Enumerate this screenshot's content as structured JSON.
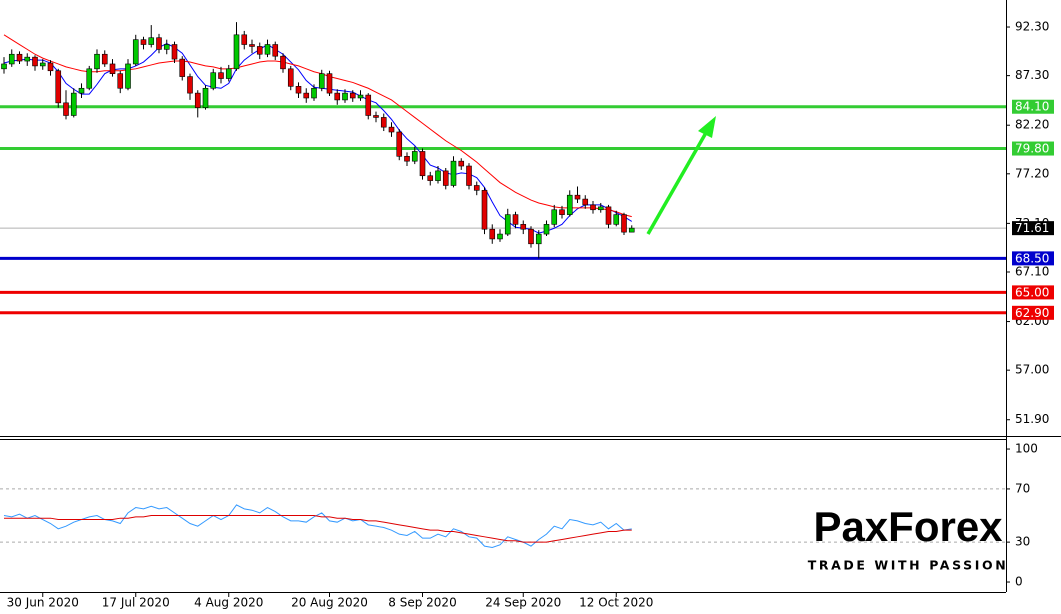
{
  "chart_data": {
    "type": "candlestick",
    "categories": [
      null,
      null,
      null,
      null,
      null,
      "30 Jun 2020",
      null,
      null,
      null,
      null,
      null,
      null,
      null,
      null,
      null,
      null,
      null,
      "17 Jul 2020",
      null,
      null,
      null,
      null,
      null,
      null,
      null,
      null,
      null,
      null,
      null,
      "4 Aug 2020",
      null,
      null,
      null,
      null,
      null,
      null,
      null,
      null,
      null,
      null,
      null,
      null,
      "20 Aug 2020",
      null,
      null,
      null,
      null,
      null,
      null,
      null,
      null,
      null,
      null,
      null,
      "8 Sep 2020",
      null,
      null,
      null,
      null,
      null,
      null,
      null,
      null,
      null,
      null,
      null,
      null,
      "24 Sep 2020",
      null,
      null,
      null,
      null,
      null,
      null,
      null,
      null,
      null,
      null,
      null,
      "12 Oct 2020",
      null,
      null
    ],
    "ohlc": [
      [
        88.0,
        89.2,
        87.5,
        88.5
      ],
      [
        88.5,
        90.0,
        88.2,
        89.5
      ],
      [
        89.5,
        89.8,
        88.5,
        88.8
      ],
      [
        88.8,
        89.6,
        88.3,
        89.2
      ],
      [
        89.2,
        89.4,
        87.8,
        88.3
      ],
      [
        88.3,
        89.0,
        87.9,
        88.6
      ],
      [
        88.6,
        88.9,
        87.3,
        87.8
      ],
      [
        87.8,
        88.0,
        84.0,
        84.5
      ],
      [
        84.5,
        85.8,
        82.8,
        83.2
      ],
      [
        83.2,
        86.0,
        83.0,
        85.5
      ],
      [
        85.5,
        86.5,
        85.0,
        86.0
      ],
      [
        86.0,
        88.3,
        85.8,
        88.0
      ],
      [
        88.0,
        90.0,
        87.6,
        89.5
      ],
      [
        89.5,
        89.9,
        88.2,
        88.5
      ],
      [
        88.5,
        89.0,
        87.2,
        87.5
      ],
      [
        87.5,
        87.8,
        85.5,
        86.0
      ],
      [
        86.0,
        89.0,
        85.8,
        88.5
      ],
      [
        88.5,
        91.5,
        88.3,
        91.0
      ],
      [
        91.0,
        91.3,
        90.0,
        90.5
      ],
      [
        90.5,
        92.5,
        90.2,
        91.2
      ],
      [
        91.2,
        91.6,
        89.6,
        90.0
      ],
      [
        90.0,
        91.0,
        89.5,
        90.5
      ],
      [
        90.5,
        90.8,
        88.6,
        89.0
      ],
      [
        89.0,
        89.3,
        86.8,
        87.2
      ],
      [
        87.2,
        87.5,
        84.8,
        85.5
      ],
      [
        85.5,
        85.8,
        83.0,
        84.0
      ],
      [
        84.0,
        86.3,
        83.8,
        86.0
      ],
      [
        86.0,
        88.0,
        85.8,
        87.6
      ],
      [
        87.6,
        88.2,
        86.5,
        87.0
      ],
      [
        87.0,
        88.4,
        86.7,
        88.0
      ],
      [
        88.0,
        92.8,
        87.8,
        91.5
      ],
      [
        91.5,
        91.9,
        90.0,
        90.5
      ],
      [
        90.5,
        91.0,
        89.6,
        90.3
      ],
      [
        90.3,
        90.7,
        89.0,
        89.5
      ],
      [
        89.5,
        91.0,
        89.2,
        90.5
      ],
      [
        90.5,
        90.8,
        88.9,
        89.3
      ],
      [
        89.3,
        89.6,
        87.6,
        88.0
      ],
      [
        88.0,
        88.3,
        85.8,
        86.2
      ],
      [
        86.2,
        86.6,
        85.0,
        85.5
      ],
      [
        85.5,
        86.0,
        84.5,
        85.0
      ],
      [
        85.0,
        86.4,
        84.7,
        86.0
      ],
      [
        86.0,
        87.9,
        85.7,
        87.5
      ],
      [
        87.5,
        87.8,
        85.2,
        85.5
      ],
      [
        85.5,
        85.9,
        84.3,
        84.8
      ],
      [
        84.8,
        85.9,
        84.5,
        85.5
      ],
      [
        85.5,
        85.8,
        84.6,
        85.0
      ],
      [
        85.0,
        85.8,
        84.7,
        85.3
      ],
      [
        85.3,
        85.5,
        82.8,
        83.2
      ],
      [
        83.2,
        83.6,
        82.5,
        83.0
      ],
      [
        83.0,
        83.4,
        81.6,
        82.0
      ],
      [
        82.0,
        82.5,
        81.0,
        81.5
      ],
      [
        81.5,
        81.8,
        78.6,
        79.0
      ],
      [
        79.0,
        79.4,
        78.0,
        78.5
      ],
      [
        78.5,
        80.0,
        78.2,
        79.5
      ],
      [
        79.5,
        79.8,
        76.6,
        77.0
      ],
      [
        77.0,
        77.4,
        76.0,
        76.5
      ],
      [
        76.5,
        78.0,
        76.2,
        77.5
      ],
      [
        77.5,
        77.8,
        75.6,
        76.0
      ],
      [
        76.0,
        79.0,
        75.8,
        78.5
      ],
      [
        78.5,
        78.8,
        77.6,
        78.0
      ],
      [
        78.0,
        78.3,
        75.6,
        76.0
      ],
      [
        76.0,
        76.4,
        75.0,
        75.5
      ],
      [
        75.5,
        75.8,
        71.0,
        71.5
      ],
      [
        71.5,
        72.0,
        70.0,
        70.5
      ],
      [
        70.5,
        71.5,
        70.2,
        71.0
      ],
      [
        71.0,
        73.6,
        70.8,
        73.0
      ],
      [
        73.0,
        73.3,
        71.6,
        72.0
      ],
      [
        72.0,
        72.4,
        71.0,
        71.5
      ],
      [
        71.5,
        71.8,
        69.6,
        70.0
      ],
      [
        70.0,
        71.4,
        68.5,
        71.0
      ],
      [
        71.0,
        72.4,
        70.8,
        72.0
      ],
      [
        72.0,
        74.0,
        71.7,
        73.5
      ],
      [
        73.5,
        73.9,
        72.6,
        73.0
      ],
      [
        73.0,
        75.5,
        72.8,
        75.0
      ],
      [
        75.0,
        75.9,
        74.2,
        74.6
      ],
      [
        74.6,
        75.0,
        73.6,
        74.0
      ],
      [
        74.0,
        74.4,
        73.1,
        73.5
      ],
      [
        73.5,
        74.2,
        73.2,
        73.8
      ],
      [
        73.8,
        74.0,
        71.6,
        72.0
      ],
      [
        72.0,
        73.4,
        71.8,
        73.0
      ],
      [
        73.0,
        73.2,
        70.9,
        71.2
      ],
      [
        71.2,
        71.9,
        71.2,
        71.61
      ]
    ],
    "up_color": "#00c800",
    "down_color": "#e00000",
    "series": [
      {
        "color": "#0000ff",
        "values": [
          88.6,
          88.8,
          88.9,
          89.0,
          88.9,
          88.9,
          88.6,
          87.7,
          86.5,
          85.9,
          85.4,
          85.4,
          86.4,
          87.5,
          87.9,
          88.0,
          88.0,
          88.3,
          88.7,
          89.4,
          90.2,
          90.6,
          90.2,
          89.6,
          88.4,
          87.2,
          86.3,
          86.1,
          86.0,
          86.5,
          88.0,
          88.9,
          89.5,
          90.0,
          90.5,
          90.0,
          89.5,
          88.7,
          87.9,
          86.8,
          86.1,
          86.0,
          85.9,
          85.8,
          85.7,
          85.6,
          85.2,
          84.8,
          84.5,
          83.7,
          82.8,
          81.7,
          80.8,
          80.1,
          79.1,
          78.1,
          77.8,
          77.3,
          77.1,
          77.3,
          77.2,
          76.8,
          75.8,
          74.3,
          72.9,
          72.3,
          71.7,
          71.6,
          71.5,
          71.1,
          71.3,
          71.6,
          72.0,
          72.9,
          73.6,
          74.0,
          74.0,
          74.0,
          73.6,
          73.2,
          72.8,
          72.3
        ]
      },
      {
        "color": "#ff0000",
        "values": [
          91.5,
          91.0,
          90.5,
          90.0,
          89.5,
          89.1,
          88.8,
          88.5,
          88.2,
          88.0,
          87.8,
          87.7,
          87.7,
          87.8,
          87.8,
          87.8,
          87.9,
          88.0,
          88.2,
          88.4,
          88.6,
          88.7,
          88.8,
          88.8,
          88.7,
          88.5,
          88.3,
          88.2,
          88.0,
          88.0,
          88.1,
          88.3,
          88.5,
          88.7,
          88.8,
          88.8,
          88.7,
          88.5,
          88.3,
          88.0,
          87.7,
          87.5,
          87.2,
          87.0,
          86.8,
          86.6,
          86.3,
          86.0,
          85.6,
          85.2,
          84.8,
          84.2,
          83.6,
          83.0,
          82.4,
          81.8,
          81.2,
          80.6,
          80.1,
          79.6,
          79.0,
          78.4,
          77.7,
          77.0,
          76.3,
          75.8,
          75.3,
          74.9,
          74.5,
          74.2,
          74.0,
          73.8,
          73.7,
          73.7,
          73.7,
          73.7,
          73.7,
          73.6,
          73.5,
          73.3,
          73.0,
          72.8
        ]
      }
    ],
    "ylim": [
      50.33,
      95.08
    ],
    "yticks": [
      {
        "value": 92.3,
        "label": "92.30"
      },
      {
        "value": 87.3,
        "label": "87.30"
      },
      {
        "value": 82.2,
        "label": "82.20"
      },
      {
        "value": 77.2,
        "label": "77.20"
      },
      {
        "value": 72.1,
        "label": "72.10"
      },
      {
        "value": 67.1,
        "label": "67.10"
      },
      {
        "value": 62.0,
        "label": "62.00"
      },
      {
        "value": 57.0,
        "label": "57.00"
      },
      {
        "value": 51.9,
        "label": "51.90"
      }
    ],
    "levels": [
      {
        "value": 84.1,
        "label": "84.10",
        "color": "#33cc33"
      },
      {
        "value": 79.8,
        "label": "79.80",
        "color": "#33cc33"
      },
      {
        "value": 68.5,
        "label": "68.50",
        "color": "#0000cc"
      },
      {
        "value": 65.0,
        "label": "65.00",
        "color": "#ee0000"
      },
      {
        "value": 62.9,
        "label": "62.90",
        "color": "#ee0000"
      }
    ],
    "last_price": 71.61,
    "indicator": {
      "ylim": [
        -6,
        106.8
      ],
      "yticks": [
        0,
        30,
        70,
        100
      ],
      "grid": [
        30,
        70
      ],
      "series": [
        {
          "color": "#3399ff",
          "values": [
            50,
            49,
            51,
            48,
            50,
            47,
            44,
            40,
            42,
            45,
            47,
            49,
            50,
            47,
            46,
            44,
            52,
            56,
            55,
            57,
            55,
            56,
            52,
            48,
            44,
            42,
            46,
            50,
            47,
            50,
            58,
            55,
            54,
            52,
            56,
            53,
            49,
            46,
            46,
            45,
            49,
            52,
            46,
            45,
            48,
            46,
            47,
            43,
            42,
            41,
            39,
            36,
            35,
            38,
            33,
            33,
            36,
            34,
            40,
            38,
            34,
            33,
            27,
            26,
            28,
            34,
            32,
            30,
            27,
            32,
            36,
            42,
            40,
            47,
            46,
            44,
            43,
            45,
            40,
            44,
            39,
            40
          ]
        },
        {
          "color": "#dd0000",
          "values": [
            48,
            48,
            48,
            48,
            48,
            48,
            48,
            47,
            47,
            47,
            47,
            47,
            47,
            47,
            47,
            48,
            48,
            49,
            49,
            50,
            50,
            50,
            50,
            50,
            50,
            50,
            50,
            50,
            50,
            50,
            50,
            50,
            50,
            50,
            50,
            50,
            50,
            50,
            50,
            50,
            50,
            49,
            49,
            48,
            48,
            47,
            47,
            46,
            46,
            45,
            44,
            43,
            42,
            41,
            40,
            39,
            39,
            38,
            38,
            37,
            36,
            35,
            34,
            33,
            32,
            31,
            31,
            30,
            30,
            30,
            30,
            31,
            32,
            33,
            34,
            35,
            36,
            37,
            38,
            38,
            39,
            39
          ]
        }
      ]
    },
    "watermark": {
      "logo": "PaxForex",
      "tagline": "TRADE WITH PASSION"
    }
  }
}
